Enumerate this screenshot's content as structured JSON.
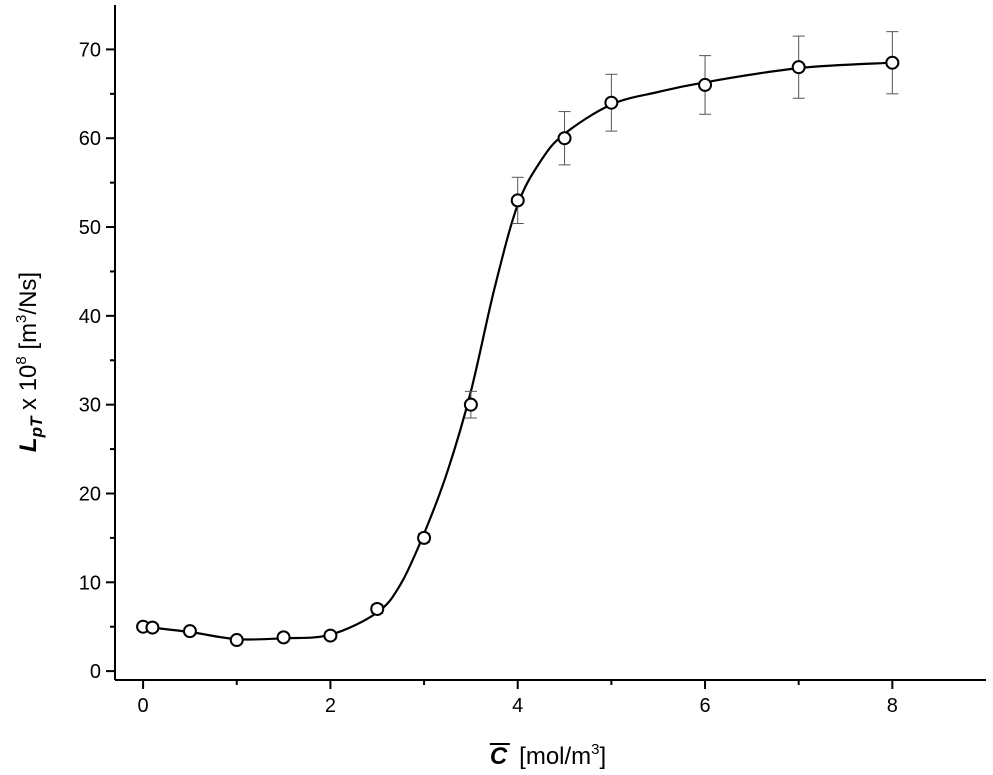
{
  "chart_data": {
    "type": "scatter",
    "xlabel": {
      "symbol": "C",
      "unit_prefix": "[mol/m",
      "unit_exp": "3",
      "unit_suffix": "]"
    },
    "ylabel": {
      "symbol": "L",
      "subscript": "pT",
      "multiplier": " x 10",
      "multiplier_exp": "8",
      "unit_prefix": " [m",
      "unit_exp": "3",
      "unit_suffix": "/Ns]"
    },
    "xlim": [
      -0.3,
      9.0
    ],
    "ylim": [
      -1.0,
      75.0
    ],
    "x_ticks": [
      0,
      2,
      4,
      6,
      8
    ],
    "x_tick_labels": [
      "0",
      "2",
      "4",
      "6",
      "8"
    ],
    "x_minor_ticks": [
      1,
      3,
      5,
      7
    ],
    "y_ticks": [
      0,
      10,
      20,
      30,
      40,
      50,
      60,
      70
    ],
    "y_tick_labels": [
      "0",
      "10",
      "20",
      "30",
      "40",
      "50",
      "60",
      "70"
    ],
    "y_minor_ticks": [
      5,
      15,
      25,
      35,
      45,
      55,
      65
    ],
    "grid": false,
    "legend": "none",
    "series": [
      {
        "x": [
          0,
          0.1,
          0.5,
          1.0,
          1.5,
          2.0,
          2.5,
          3.0,
          3.5,
          4.0,
          4.5,
          5.0,
          6.0,
          7.0,
          8.0
        ],
        "y": [
          5.0,
          4.9,
          4.5,
          3.5,
          3.8,
          4.0,
          7.0,
          15.0,
          30.0,
          53.0,
          60.0,
          64.0,
          66.0,
          68.0,
          68.5
        ],
        "error": [
          0.4,
          0.4,
          0.4,
          0.4,
          0.4,
          0.4,
          0.5,
          0.5,
          1.5,
          2.6,
          3.0,
          3.2,
          3.3,
          3.5,
          3.5
        ]
      }
    ],
    "fit_curve": {
      "x": [
        0,
        0.5,
        1.0,
        1.5,
        2.0,
        2.5,
        2.75,
        3.0,
        3.25,
        3.5,
        3.75,
        4.0,
        4.25,
        4.5,
        5.0,
        5.5,
        6.0,
        7.0,
        8.0
      ],
      "y": [
        5.0,
        4.4,
        3.6,
        3.7,
        4.1,
        6.6,
        9.8,
        15.5,
        22.5,
        31.5,
        43.0,
        52.5,
        57.5,
        60.5,
        63.8,
        65.2,
        66.3,
        67.9,
        68.5
      ]
    }
  }
}
